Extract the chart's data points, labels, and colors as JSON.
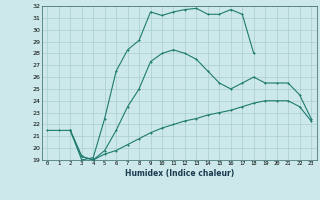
{
  "xlabel": "Humidex (Indice chaleur)",
  "bg_color": "#cce8ea",
  "grid_color": "#aacdd0",
  "line_color": "#1e7b6e",
  "xlim": [
    -0.5,
    23.5
  ],
  "ylim": [
    19,
    32
  ],
  "xticks": [
    0,
    1,
    2,
    3,
    4,
    5,
    6,
    7,
    8,
    9,
    10,
    11,
    12,
    13,
    14,
    15,
    16,
    17,
    18,
    19,
    20,
    21,
    22,
    23
  ],
  "yticks": [
    19,
    20,
    21,
    22,
    23,
    24,
    25,
    26,
    27,
    28,
    29,
    30,
    31,
    32
  ],
  "curve1_x": [
    0,
    1,
    2,
    3,
    4,
    5,
    6,
    7,
    8,
    9,
    10,
    11,
    12,
    13,
    14,
    15,
    16,
    17,
    18,
    19,
    20,
    21,
    22,
    23
  ],
  "curve1_y": [
    21.5,
    21.5,
    21.5,
    19.0,
    19.2,
    22.5,
    26.5,
    28.3,
    29.1,
    31.5,
    31.2,
    31.5,
    31.7,
    31.8,
    31.3,
    31.3,
    31.7,
    31.3,
    28.0,
    null,
    null,
    null,
    null,
    null
  ],
  "curve2_x": [
    2,
    3,
    4,
    5,
    6,
    7,
    8,
    9,
    10,
    11,
    12,
    13,
    14,
    15,
    16,
    17,
    18,
    19,
    20,
    21,
    22,
    23
  ],
  "curve2_y": [
    21.5,
    19.3,
    19.0,
    19.8,
    21.5,
    23.5,
    25.0,
    27.3,
    28.0,
    28.3,
    28.0,
    27.5,
    26.5,
    25.5,
    25.0,
    25.5,
    26.0,
    25.5,
    25.5,
    25.5,
    24.5,
    22.5
  ],
  "curve3_x": [
    2,
    3,
    4,
    5,
    6,
    7,
    8,
    9,
    10,
    11,
    12,
    13,
    14,
    15,
    16,
    17,
    18,
    19,
    20,
    21,
    22,
    23
  ],
  "curve3_y": [
    21.5,
    19.3,
    19.0,
    19.5,
    19.8,
    20.3,
    20.8,
    21.3,
    21.7,
    22.0,
    22.3,
    22.5,
    22.8,
    23.0,
    23.2,
    23.5,
    23.8,
    24.0,
    24.0,
    24.0,
    23.5,
    22.3
  ]
}
